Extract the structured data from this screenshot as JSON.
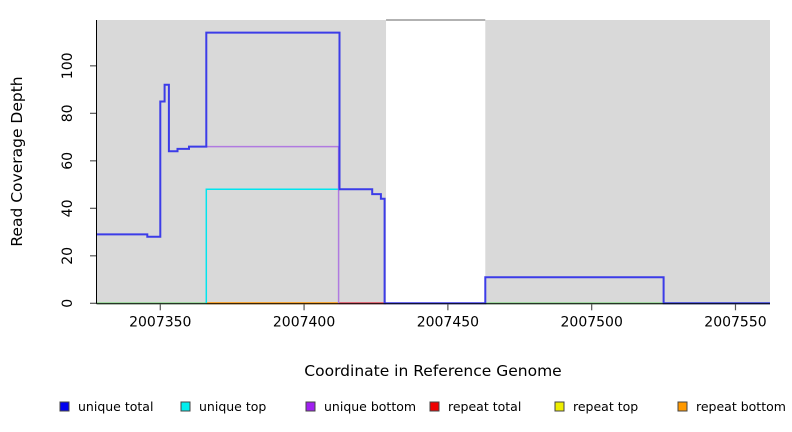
{
  "chart_data": {
    "type": "line",
    "subtype": "step-coverage-plot",
    "title": "",
    "xlabel": "Coordinate in Reference Genome",
    "ylabel": "Read Coverage Depth",
    "xlim": [
      2007328,
      2007562
    ],
    "ylim": [
      0,
      119.3
    ],
    "x_ticks": [
      2007350,
      2007400,
      2007450,
      2007500,
      2007550
    ],
    "y_ticks": [
      0,
      20,
      40,
      60,
      80,
      100
    ],
    "grid": false,
    "panel_bg": "#d9d9d9",
    "uncovered_region": {
      "x1": 2007428.5,
      "x2": 2007463,
      "fill": "#ffffff",
      "top_border": "#999999"
    },
    "legend_position": "bottom",
    "series": [
      {
        "name": "baseline left",
        "color": "#8fd98f",
        "width": 2,
        "mode": "poly",
        "points": [
          [
            2007328,
            0
          ],
          [
            2007366,
            0
          ]
        ]
      },
      {
        "name": "baseline right",
        "color": "#8fd98f",
        "width": 2,
        "mode": "poly",
        "points": [
          [
            2007463,
            0
          ],
          [
            2007562,
            0
          ]
        ]
      },
      {
        "name": "repeat bottom",
        "color": "#ff9500",
        "width": 2,
        "mode": "poly",
        "points": [
          [
            2007366,
            0
          ],
          [
            2007412,
            0
          ]
        ]
      },
      {
        "name": "repeat total",
        "color": "#e04858",
        "width": 2,
        "mode": "poly",
        "points": [
          [
            2007412,
            0
          ],
          [
            2007428.5,
            0
          ]
        ]
      },
      {
        "name": "repeat top",
        "color": "#eeee00",
        "width": 1.5,
        "mode": "poly",
        "points": []
      },
      {
        "name": "unique top",
        "color": "#00e5ee",
        "width": 1.5,
        "mode": "poly",
        "points": [
          [
            2007366,
            0
          ],
          [
            2007366,
            48
          ],
          [
            2007412,
            48
          ]
        ]
      },
      {
        "name": "unique bottom",
        "color": "#b07ae0",
        "width": 1.5,
        "mode": "poly",
        "points": [
          [
            2007366,
            66
          ],
          [
            2007412,
            66
          ],
          [
            2007412,
            0
          ]
        ]
      },
      {
        "name": "unique total",
        "color": "#3c3ce8",
        "width": 2,
        "mode": "step",
        "points": [
          [
            2007328,
            29
          ],
          [
            2007345.5,
            28
          ],
          [
            2007350,
            85
          ],
          [
            2007351.5,
            92
          ],
          [
            2007353,
            64
          ],
          [
            2007356,
            65
          ],
          [
            2007360,
            66
          ],
          [
            2007366,
            114
          ],
          [
            2007412.3,
            48
          ],
          [
            2007423.7,
            46
          ],
          [
            2007426.7,
            44
          ],
          [
            2007428,
            0
          ],
          [
            2007463,
            11
          ],
          [
            2007525,
            0
          ],
          [
            2007562,
            0
          ]
        ]
      }
    ]
  },
  "legend": {
    "entries": [
      {
        "label": "unique total",
        "color": "#0000ee"
      },
      {
        "label": "unique top",
        "color": "#00eeee"
      },
      {
        "label": "unique bottom",
        "color": "#a020f0"
      },
      {
        "label": "repeat total",
        "color": "#ee0000"
      },
      {
        "label": "repeat top",
        "color": "#eeee00"
      },
      {
        "label": "repeat bottom",
        "color": "#ff9900"
      }
    ]
  }
}
